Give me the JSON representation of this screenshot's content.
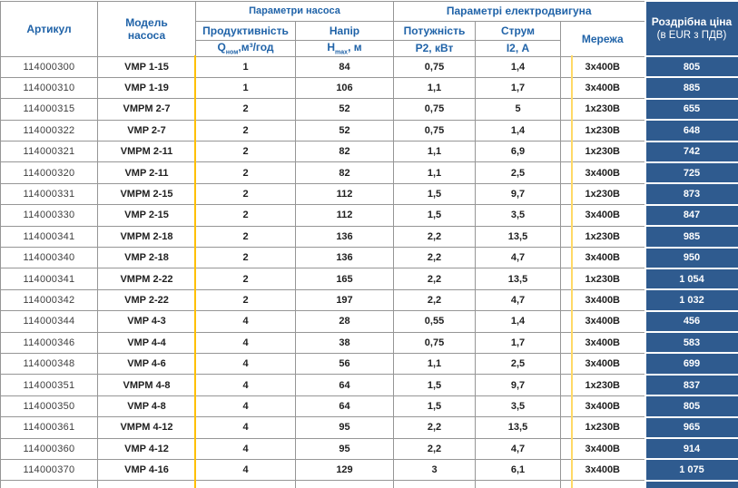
{
  "table": {
    "headers": {
      "artikul": "Артикул",
      "model_line1": "Модель",
      "model_line2": "насоса",
      "pump_group": "Параметри насоса",
      "motor_group": "Параметрі електродвигуна",
      "productivity": "Продуктивність",
      "q_sym": "Q",
      "q_sub": "ном",
      "q_rest": ",м³/год",
      "head": "Напір",
      "h_sym": "H",
      "h_sub": "max",
      "h_rest": ", м",
      "power": "Потужність",
      "power_unit": "P2, кВт",
      "current": "Струм",
      "current_unit": "I2, А",
      "network": "Мережа",
      "price_line1": "Роздрібна ціна",
      "price_line2": "(в EUR з ПДВ)"
    },
    "rows": [
      {
        "article": "114000300",
        "model": "VMP 1-15",
        "q": "1",
        "h": "84",
        "p2": "0,75",
        "i2": "1,4",
        "network": "3x400В",
        "price": "805"
      },
      {
        "article": "114000310",
        "model": "VMP 1-19",
        "q": "1",
        "h": "106",
        "p2": "1,1",
        "i2": "1,7",
        "network": "3x400В",
        "price": "885"
      },
      {
        "article": "114000315",
        "model": "VMPM 2-7",
        "q": "2",
        "h": "52",
        "p2": "0,75",
        "i2": "5",
        "network": "1x230В",
        "price": "655"
      },
      {
        "article": "114000322",
        "model": "VMP 2-7",
        "q": "2",
        "h": "52",
        "p2": "0,75",
        "i2": "1,4",
        "network": "1x230В",
        "price": "648"
      },
      {
        "article": "114000321",
        "model": "VMPM 2-11",
        "q": "2",
        "h": "82",
        "p2": "1,1",
        "i2": "6,9",
        "network": "1x230В",
        "price": "742"
      },
      {
        "article": "114000320",
        "model": "VMP 2-11",
        "q": "2",
        "h": "82",
        "p2": "1,1",
        "i2": "2,5",
        "network": "3x400В",
        "price": "725"
      },
      {
        "article": "114000331",
        "model": "VMPM 2-15",
        "q": "2",
        "h": "112",
        "p2": "1,5",
        "i2": "9,7",
        "network": "1x230В",
        "price": "873"
      },
      {
        "article": "114000330",
        "model": "VMP 2-15",
        "q": "2",
        "h": "112",
        "p2": "1,5",
        "i2": "3,5",
        "network": "3x400В",
        "price": "847"
      },
      {
        "article": "114000341",
        "model": "VMPM 2-18",
        "q": "2",
        "h": "136",
        "p2": "2,2",
        "i2": "13,5",
        "network": "1x230В",
        "price": "985"
      },
      {
        "article": "114000340",
        "model": "VMP 2-18",
        "q": "2",
        "h": "136",
        "p2": "2,2",
        "i2": "4,7",
        "network": "3x400В",
        "price": "950"
      },
      {
        "article": "114000341",
        "model": "VMPM 2-22",
        "q": "2",
        "h": "165",
        "p2": "2,2",
        "i2": "13,5",
        "network": "1x230В",
        "price": "1 054"
      },
      {
        "article": "114000342",
        "model": "VMP 2-22",
        "q": "2",
        "h": "197",
        "p2": "2,2",
        "i2": "4,7",
        "network": "3x400В",
        "price": "1 032"
      },
      {
        "article": "114000344",
        "model": "VMP 4-3",
        "q": "4",
        "h": "28",
        "p2": "0,55",
        "i2": "1,4",
        "network": "3x400В",
        "price": "456"
      },
      {
        "article": "114000346",
        "model": "VMP 4-4",
        "q": "4",
        "h": "38",
        "p2": "0,75",
        "i2": "1,7",
        "network": "3x400В",
        "price": "583"
      },
      {
        "article": "114000348",
        "model": "VMP 4-6",
        "q": "4",
        "h": "56",
        "p2": "1,1",
        "i2": "2,5",
        "network": "3x400В",
        "price": "699"
      },
      {
        "article": "114000351",
        "model": "VMPM 4-8",
        "q": "4",
        "h": "64",
        "p2": "1,5",
        "i2": "9,7",
        "network": "1x230В",
        "price": "837"
      },
      {
        "article": "114000350",
        "model": "VMP 4-8",
        "q": "4",
        "h": "64",
        "p2": "1,5",
        "i2": "3,5",
        "network": "3x400В",
        "price": "805"
      },
      {
        "article": "114000361",
        "model": "VMPM 4-12",
        "q": "4",
        "h": "95",
        "p2": "2,2",
        "i2": "13,5",
        "network": "1x230В",
        "price": "965"
      },
      {
        "article": "114000360",
        "model": "VMP 4-12",
        "q": "4",
        "h": "95",
        "p2": "2,2",
        "i2": "4,7",
        "network": "3x400В",
        "price": "914"
      },
      {
        "article": "114000370",
        "model": "VMP 4-16",
        "q": "4",
        "h": "129",
        "p2": "3",
        "i2": "6,1",
        "network": "3x400В",
        "price": "1 075"
      }
    ]
  },
  "colors": {
    "header_text": "#2063A8",
    "price_background": "#2F5B8F",
    "border_gray": "#969696",
    "accent_orange": "#FFC000",
    "accent_light_orange": "#FFD966"
  }
}
